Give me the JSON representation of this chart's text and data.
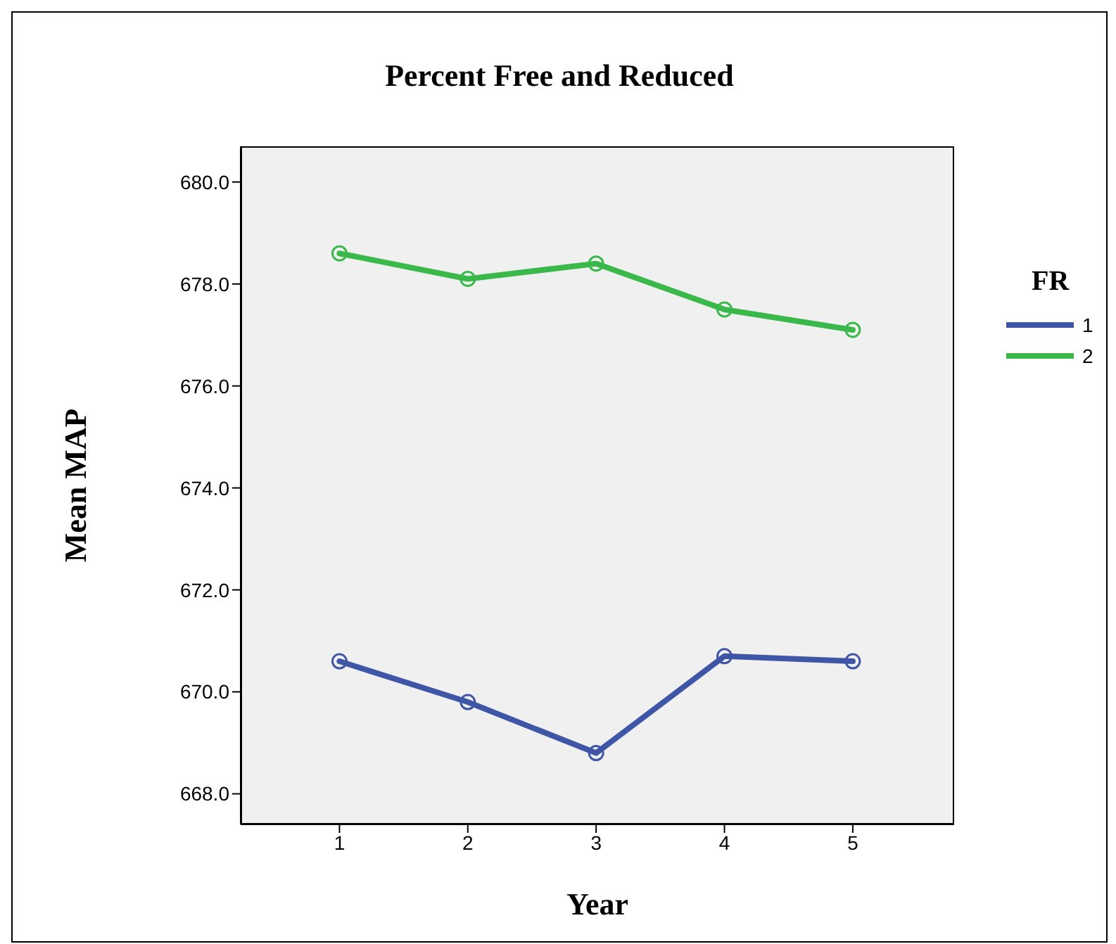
{
  "chart_data": {
    "type": "line",
    "title": "Percent Free and Reduced",
    "xlabel": "Year",
    "ylabel": "Mean MAP",
    "legend_title": "FR",
    "x": [
      1,
      2,
      3,
      4,
      5
    ],
    "series": [
      {
        "name": "1",
        "color": "#3f56a6",
        "values": [
          670.6,
          669.8,
          668.8,
          670.7,
          670.6
        ]
      },
      {
        "name": "2",
        "color": "#3bb84a",
        "values": [
          678.6,
          678.1,
          678.4,
          677.5,
          677.1
        ]
      }
    ],
    "xlim": [
      0.23,
      5.79
    ],
    "xticks": [
      1,
      2,
      3,
      4,
      5
    ],
    "ylim": [
      667.4,
      680.7
    ],
    "yticks": [
      {
        "value": 668,
        "label": "668.0"
      },
      {
        "value": 670,
        "label": "670.0"
      },
      {
        "value": 672,
        "label": "672.0"
      },
      {
        "value": 674,
        "label": "674.0"
      },
      {
        "value": 676,
        "label": "676.0"
      },
      {
        "value": 678,
        "label": "678.0"
      },
      {
        "value": 680,
        "label": "680.0"
      }
    ],
    "legend": "right",
    "marker": "circle",
    "line_style": "solid",
    "grid": false
  }
}
